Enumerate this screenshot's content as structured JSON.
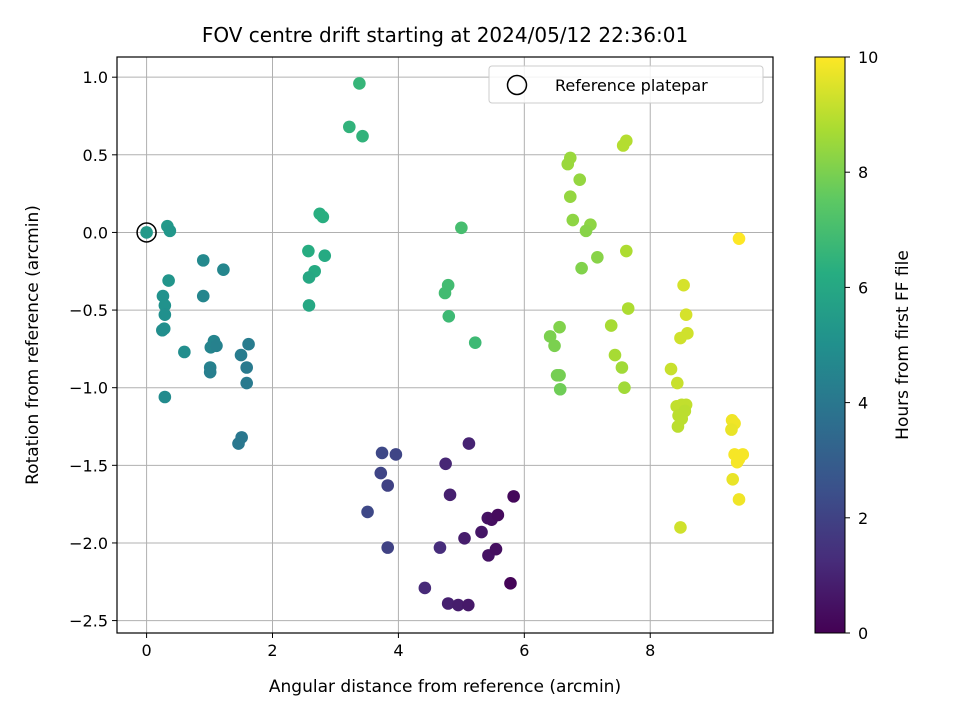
{
  "chart_data": {
    "type": "scatter",
    "title": "FOV centre drift starting at 2024/05/12 22:36:01",
    "xlabel": "Angular distance from reference (arcmin)",
    "ylabel": "Rotation from reference (arcmin)",
    "xlim": [
      -0.47,
      9.95
    ],
    "ylim": [
      -2.58,
      1.13
    ],
    "xticks": [
      "0",
      "2",
      "4",
      "6",
      "8"
    ],
    "xtick_values": [
      0,
      2,
      4,
      6,
      8
    ],
    "yticks": [
      "1.0",
      "0.5",
      "0.0",
      "−0.5",
      "−1.0",
      "−1.5",
      "−2.0",
      "−2.5"
    ],
    "ytick_values": [
      1.0,
      0.5,
      0.0,
      -0.5,
      -1.0,
      -1.5,
      -2.0,
      -2.5
    ],
    "grid": true,
    "colormap": "viridis",
    "colorbar": {
      "label": "Hours from first FF file",
      "range": [
        0,
        10
      ],
      "ticks": [
        "0",
        "2",
        "4",
        "6",
        "8",
        "10"
      ],
      "tick_values": [
        0,
        2,
        4,
        6,
        8,
        10
      ]
    },
    "legend": {
      "placement": "top-right",
      "entries": [
        "Reference platepar"
      ]
    },
    "reference_point": {
      "x": 0,
      "y": 0
    },
    "points": [
      {
        "x": 0.0,
        "y": 0.0,
        "c": 5.4
      },
      {
        "x": 0.33,
        "y": 0.04,
        "c": 5.4
      },
      {
        "x": 0.37,
        "y": 0.01,
        "c": 5.3
      },
      {
        "x": 0.35,
        "y": -0.31,
        "c": 5.2
      },
      {
        "x": 0.26,
        "y": -0.41,
        "c": 5.1
      },
      {
        "x": 0.29,
        "y": -0.47,
        "c": 5.1
      },
      {
        "x": 0.29,
        "y": -0.53,
        "c": 5.0
      },
      {
        "x": 0.28,
        "y": -0.62,
        "c": 5.0
      },
      {
        "x": 0.25,
        "y": -0.63,
        "c": 4.9
      },
      {
        "x": 0.6,
        "y": -0.77,
        "c": 4.9
      },
      {
        "x": 0.29,
        "y": -1.06,
        "c": 4.8
      },
      {
        "x": 0.9,
        "y": -0.18,
        "c": 4.7
      },
      {
        "x": 0.9,
        "y": -0.41,
        "c": 4.6
      },
      {
        "x": 1.22,
        "y": -0.24,
        "c": 4.6
      },
      {
        "x": 1.07,
        "y": -0.7,
        "c": 4.5
      },
      {
        "x": 1.02,
        "y": -0.74,
        "c": 4.5
      },
      {
        "x": 1.11,
        "y": -0.73,
        "c": 4.4
      },
      {
        "x": 1.01,
        "y": -0.87,
        "c": 4.4
      },
      {
        "x": 1.01,
        "y": -0.9,
        "c": 4.3
      },
      {
        "x": 1.62,
        "y": -0.72,
        "c": 4.2
      },
      {
        "x": 1.5,
        "y": -0.79,
        "c": 4.2
      },
      {
        "x": 1.59,
        "y": -0.87,
        "c": 4.1
      },
      {
        "x": 1.59,
        "y": -0.97,
        "c": 4.1
      },
      {
        "x": 1.51,
        "y": -1.32,
        "c": 4.0
      },
      {
        "x": 1.46,
        "y": -1.36,
        "c": 4.0
      },
      {
        "x": 2.75,
        "y": 0.12,
        "c": 6.3
      },
      {
        "x": 2.8,
        "y": 0.1,
        "c": 6.3
      },
      {
        "x": 2.57,
        "y": -0.12,
        "c": 6.2
      },
      {
        "x": 2.83,
        "y": -0.15,
        "c": 6.1
      },
      {
        "x": 2.67,
        "y": -0.25,
        "c": 6.1
      },
      {
        "x": 2.58,
        "y": -0.29,
        "c": 6.0
      },
      {
        "x": 2.58,
        "y": -0.47,
        "c": 6.0
      },
      {
        "x": 3.38,
        "y": 0.96,
        "c": 6.6
      },
      {
        "x": 3.22,
        "y": 0.68,
        "c": 6.5
      },
      {
        "x": 3.43,
        "y": 0.62,
        "c": 6.5
      },
      {
        "x": 5.0,
        "y": 0.03,
        "c": 7.0
      },
      {
        "x": 4.79,
        "y": -0.34,
        "c": 6.9
      },
      {
        "x": 4.74,
        "y": -0.39,
        "c": 6.9
      },
      {
        "x": 4.8,
        "y": -0.54,
        "c": 6.8
      },
      {
        "x": 5.22,
        "y": -0.71,
        "c": 6.8
      },
      {
        "x": 3.74,
        "y": -1.42,
        "c": 2.2
      },
      {
        "x": 3.96,
        "y": -1.43,
        "c": 2.1
      },
      {
        "x": 3.72,
        "y": -1.55,
        "c": 2.1
      },
      {
        "x": 3.83,
        "y": -1.63,
        "c": 2.0
      },
      {
        "x": 3.51,
        "y": -1.8,
        "c": 2.2
      },
      {
        "x": 3.83,
        "y": -2.03,
        "c": 2.0
      },
      {
        "x": 4.66,
        "y": -2.03,
        "c": 1.3
      },
      {
        "x": 4.42,
        "y": -2.29,
        "c": 1.2
      },
      {
        "x": 4.75,
        "y": -1.49,
        "c": 1.1
      },
      {
        "x": 5.12,
        "y": -1.36,
        "c": 1.0
      },
      {
        "x": 4.82,
        "y": -1.69,
        "c": 0.9
      },
      {
        "x": 5.05,
        "y": -1.97,
        "c": 0.8
      },
      {
        "x": 5.32,
        "y": -1.93,
        "c": 0.6
      },
      {
        "x": 5.42,
        "y": -1.84,
        "c": 0.5
      },
      {
        "x": 5.48,
        "y": -1.85,
        "c": 0.4
      },
      {
        "x": 5.58,
        "y": -1.82,
        "c": 0.3
      },
      {
        "x": 5.83,
        "y": -1.7,
        "c": 0.2
      },
      {
        "x": 5.43,
        "y": -2.08,
        "c": 0.5
      },
      {
        "x": 5.55,
        "y": -2.04,
        "c": 0.4
      },
      {
        "x": 5.78,
        "y": -2.26,
        "c": 0.1
      },
      {
        "x": 4.79,
        "y": -2.39,
        "c": 0.9
      },
      {
        "x": 4.95,
        "y": -2.4,
        "c": 0.8
      },
      {
        "x": 5.11,
        "y": -2.4,
        "c": 0.7
      },
      {
        "x": 6.73,
        "y": 0.48,
        "c": 8.5
      },
      {
        "x": 6.69,
        "y": 0.44,
        "c": 8.5
      },
      {
        "x": 6.88,
        "y": 0.34,
        "c": 8.4
      },
      {
        "x": 6.73,
        "y": 0.23,
        "c": 8.4
      },
      {
        "x": 6.77,
        "y": 0.08,
        "c": 8.3
      },
      {
        "x": 7.05,
        "y": 0.05,
        "c": 8.3
      },
      {
        "x": 6.98,
        "y": 0.01,
        "c": 8.2
      },
      {
        "x": 7.16,
        "y": -0.16,
        "c": 8.2
      },
      {
        "x": 6.91,
        "y": -0.23,
        "c": 8.1
      },
      {
        "x": 7.62,
        "y": 0.59,
        "c": 8.9
      },
      {
        "x": 7.57,
        "y": 0.56,
        "c": 8.9
      },
      {
        "x": 7.62,
        "y": -0.12,
        "c": 8.8
      },
      {
        "x": 7.65,
        "y": -0.49,
        "c": 8.8
      },
      {
        "x": 7.38,
        "y": -0.6,
        "c": 8.7
      },
      {
        "x": 7.44,
        "y": -0.79,
        "c": 8.7
      },
      {
        "x": 7.55,
        "y": -0.87,
        "c": 8.6
      },
      {
        "x": 7.59,
        "y": -1.0,
        "c": 8.6
      },
      {
        "x": 6.56,
        "y": -0.61,
        "c": 8.1
      },
      {
        "x": 6.41,
        "y": -0.67,
        "c": 8.0
      },
      {
        "x": 6.48,
        "y": -0.73,
        "c": 8.0
      },
      {
        "x": 6.52,
        "y": -0.92,
        "c": 7.9
      },
      {
        "x": 6.56,
        "y": -0.92,
        "c": 7.9
      },
      {
        "x": 6.57,
        "y": -1.01,
        "c": 7.8
      },
      {
        "x": 8.53,
        "y": -0.34,
        "c": 9.4
      },
      {
        "x": 8.57,
        "y": -0.53,
        "c": 9.4
      },
      {
        "x": 8.59,
        "y": -0.65,
        "c": 9.3
      },
      {
        "x": 8.48,
        "y": -0.68,
        "c": 9.3
      },
      {
        "x": 8.33,
        "y": -0.88,
        "c": 9.2
      },
      {
        "x": 8.43,
        "y": -0.97,
        "c": 9.2
      },
      {
        "x": 8.42,
        "y": -1.12,
        "c": 9.1
      },
      {
        "x": 8.5,
        "y": -1.11,
        "c": 9.1
      },
      {
        "x": 8.57,
        "y": -1.11,
        "c": 9.1
      },
      {
        "x": 8.55,
        "y": -1.15,
        "c": 9.0
      },
      {
        "x": 8.45,
        "y": -1.18,
        "c": 9.0
      },
      {
        "x": 8.5,
        "y": -1.2,
        "c": 9.0
      },
      {
        "x": 8.44,
        "y": -1.25,
        "c": 9.0
      },
      {
        "x": 8.48,
        "y": -1.9,
        "c": 9.3
      },
      {
        "x": 9.41,
        "y": -0.04,
        "c": 10.0
      },
      {
        "x": 9.3,
        "y": -1.21,
        "c": 9.8
      },
      {
        "x": 9.34,
        "y": -1.23,
        "c": 9.8
      },
      {
        "x": 9.29,
        "y": -1.27,
        "c": 9.7
      },
      {
        "x": 9.34,
        "y": -1.43,
        "c": 9.9
      },
      {
        "x": 9.47,
        "y": -1.43,
        "c": 9.9
      },
      {
        "x": 9.41,
        "y": -1.46,
        "c": 9.9
      },
      {
        "x": 9.38,
        "y": -1.48,
        "c": 9.9
      },
      {
        "x": 9.31,
        "y": -1.59,
        "c": 9.7
      },
      {
        "x": 9.41,
        "y": -1.72,
        "c": 9.8
      }
    ]
  }
}
